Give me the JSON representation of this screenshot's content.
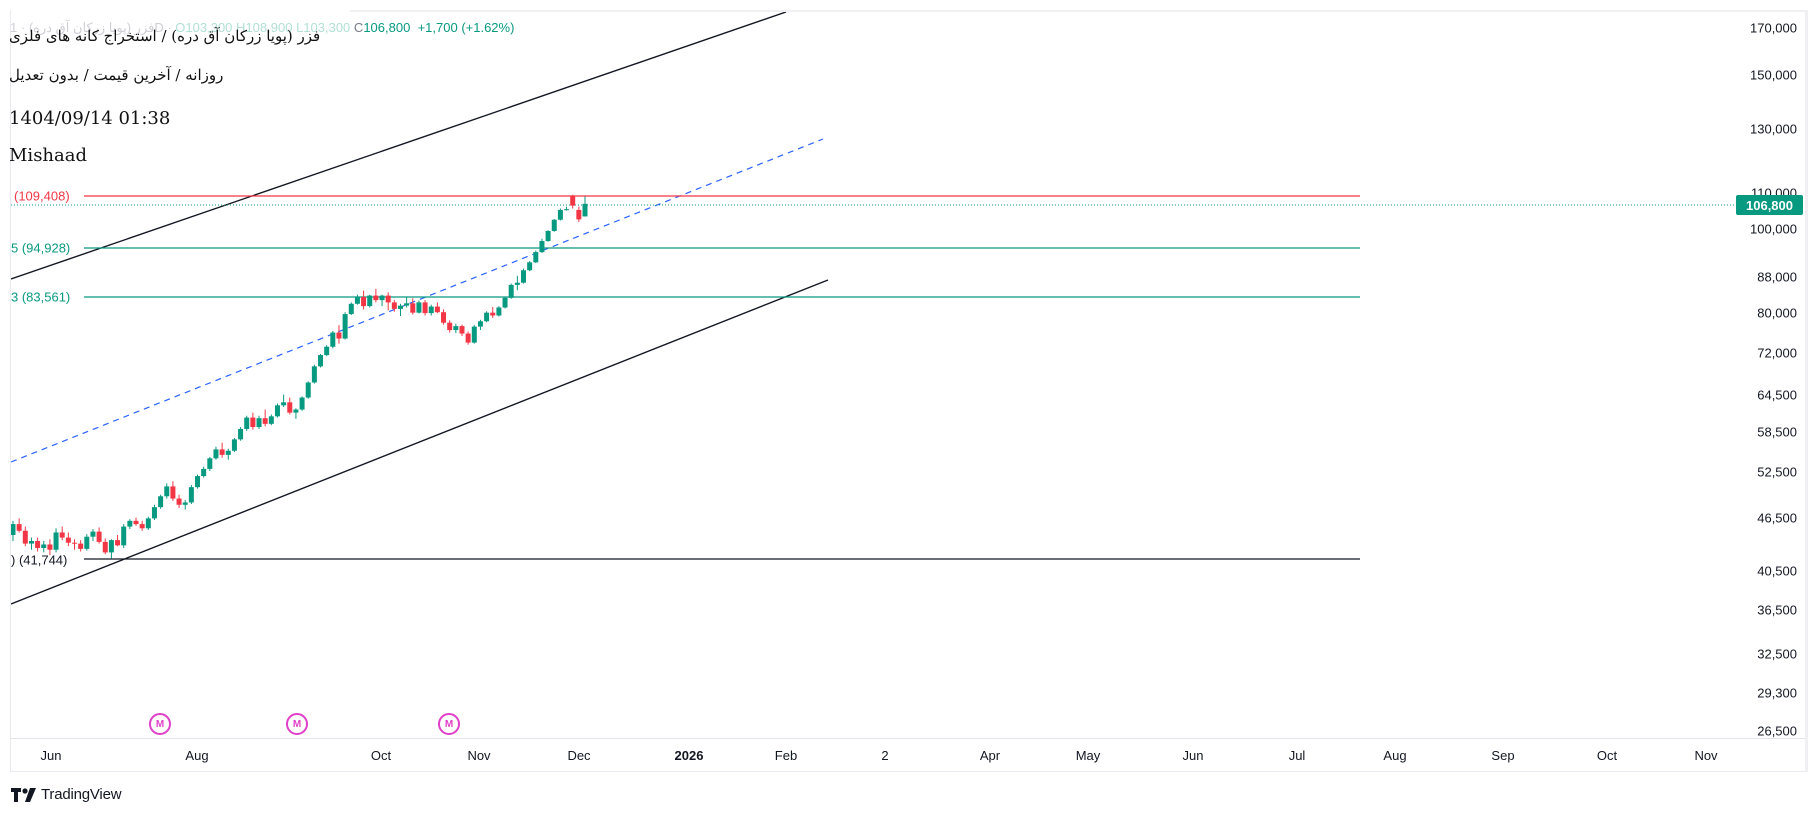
{
  "header": {
    "ohlc": {
      "symbol_faded": "فزر (پویا زرکان آق دره)",
      "interval": "1D",
      "open_label": "O",
      "open": "103,300",
      "high_label": "H",
      "high": "108,900",
      "low_label": "L",
      "low": "103,300",
      "close_label": "C",
      "close": "106,800",
      "change": "+1,700",
      "change_pct": "(+1.62%)"
    },
    "title": "فزر (پویا زرکان آق دره) / استخراج کانه های فلزی",
    "subtitle": "روزانه / آخرین قیمت / بدون تعدیل",
    "datetime": "1404/09/14 01:38",
    "author": "Mishaad"
  },
  "price_axis": {
    "ticks": [
      "170,000",
      "150,000",
      "130,000",
      "110,000",
      "100,000",
      "88,000",
      "80,000",
      "72,000",
      "64,500",
      "58,500",
      "52,500",
      "46,500",
      "40,500",
      "36,500",
      "32,500",
      "29,300",
      "26,500"
    ],
    "last_price": "106,800"
  },
  "time_axis": {
    "ticks": [
      "Jun",
      "Aug",
      "Oct",
      "Nov",
      "Dec",
      "2026",
      "Feb",
      "2",
      "Apr",
      "May",
      "Jun",
      "Jul",
      "Aug",
      "Sep",
      "Oct",
      "Nov"
    ],
    "bold_tick": "2026"
  },
  "levels": [
    {
      "label": "(109,408)",
      "value": 109408,
      "color": "#f23645"
    },
    {
      "label": "5 (94,928)",
      "value": 94928,
      "color": "#089981"
    },
    {
      "label": "3 (83,561)",
      "value": 83561,
      "color": "#089981"
    },
    {
      "label": ") (41,744)",
      "value": 41744,
      "color": "#131722"
    }
  ],
  "markers": [
    {
      "label": "M"
    },
    {
      "label": "M"
    },
    {
      "label": "M"
    }
  ],
  "footer": {
    "brand": "TradingView"
  },
  "colors": {
    "up": "#089981",
    "down": "#f23645",
    "channel": "#131722",
    "median_dashed": "#2962ff",
    "marker": "#e040c8"
  },
  "chart_data": {
    "type": "candlestick",
    "title": "فزر (پویا زرکان آق دره) / استخراج کانه های فلزی",
    "subtitle": "روزانه / آخرین قیمت / بدون تعدیل",
    "interval": "1D",
    "scale": "log",
    "ylim": [
      26500,
      170000
    ],
    "y_ticks": [
      170000,
      150000,
      130000,
      110000,
      100000,
      88000,
      80000,
      72000,
      64500,
      58500,
      52500,
      46500,
      40500,
      36500,
      32500,
      29300,
      26500
    ],
    "x_ticks": [
      "Jun",
      "Aug",
      "Oct",
      "Nov",
      "Dec",
      "2026",
      "Feb",
      "2",
      "Apr",
      "May",
      "Jun",
      "Jul",
      "Aug",
      "Sep",
      "Oct",
      "Nov"
    ],
    "last": {
      "open": 103300,
      "high": 108900,
      "low": 103300,
      "close": 106800,
      "change": 1700,
      "change_pct": 1.62
    },
    "horizontal_levels": [
      109408,
      94928,
      83561,
      41744
    ],
    "drawings": [
      "ascending parallel channel (black)",
      "dashed blue median line",
      "horizontal levels"
    ],
    "candles": [
      [
        44500,
        46200,
        43800,
        45800
      ],
      [
        45800,
        46500,
        44800,
        45000
      ],
      [
        45000,
        45500,
        43200,
        43500
      ],
      [
        43500,
        44200,
        42800,
        43800
      ],
      [
        43800,
        44200,
        42600,
        43000
      ],
      [
        43000,
        43800,
        42500,
        43400
      ],
      [
        43400,
        44000,
        42200,
        42800
      ],
      [
        42800,
        45300,
        42500,
        44800
      ],
      [
        44800,
        45500,
        43900,
        44200
      ],
      [
        44200,
        44800,
        43200,
        43600
      ],
      [
        43600,
        44000,
        42800,
        43500
      ],
      [
        43500,
        43900,
        42600,
        42900
      ],
      [
        42900,
        44600,
        42700,
        44300
      ],
      [
        44300,
        45200,
        43800,
        44900
      ],
      [
        44900,
        45400,
        43500,
        43700
      ],
      [
        43700,
        44100,
        42300,
        42500
      ],
      [
        42500,
        44000,
        41800,
        43900
      ],
      [
        43900,
        44500,
        43200,
        43300
      ],
      [
        43300,
        45800,
        43000,
        45500
      ],
      [
        45500,
        46400,
        45200,
        46200
      ],
      [
        46200,
        46600,
        45600,
        45800
      ],
      [
        45800,
        46200,
        45000,
        45300
      ],
      [
        45300,
        46700,
        45100,
        46500
      ],
      [
        46500,
        48200,
        46300,
        47900
      ],
      [
        47900,
        49500,
        47700,
        49300
      ],
      [
        49300,
        51000,
        49000,
        50600
      ],
      [
        50600,
        51300,
        48700,
        49000
      ],
      [
        49000,
        49500,
        47800,
        48200
      ],
      [
        48200,
        48800,
        47600,
        48500
      ],
      [
        48500,
        50800,
        48300,
        50500
      ],
      [
        50500,
        52200,
        50300,
        52000
      ],
      [
        52000,
        53300,
        51800,
        53000
      ],
      [
        53000,
        54700,
        52700,
        54500
      ],
      [
        54500,
        56200,
        54300,
        55800
      ],
      [
        55800,
        56800,
        54600,
        55000
      ],
      [
        55000,
        55900,
        54300,
        55600
      ],
      [
        55600,
        57500,
        55400,
        57300
      ],
      [
        57300,
        59200,
        57100,
        58900
      ],
      [
        58900,
        61000,
        58600,
        60700
      ],
      [
        60700,
        61500,
        58800,
        59200
      ],
      [
        59200,
        61000,
        58900,
        60600
      ],
      [
        60600,
        62000,
        59300,
        59700
      ],
      [
        59700,
        61200,
        59500,
        60900
      ],
      [
        60900,
        63000,
        60700,
        62700
      ],
      [
        62700,
        64500,
        62400,
        63200
      ],
      [
        63200,
        64000,
        61200,
        61500
      ],
      [
        61500,
        62200,
        60500,
        62000
      ],
      [
        62000,
        64200,
        61800,
        64000
      ],
      [
        64000,
        66800,
        63800,
        66600
      ],
      [
        66600,
        69800,
        66400,
        69500
      ],
      [
        69500,
        71800,
        69300,
        71600
      ],
      [
        71600,
        73500,
        71400,
        73200
      ],
      [
        73200,
        76300,
        72900,
        76000
      ],
      [
        76000,
        77500,
        73800,
        74800
      ],
      [
        74800,
        80200,
        74600,
        79800
      ],
      [
        79800,
        82300,
        79600,
        82000
      ],
      [
        82000,
        84000,
        81800,
        83500
      ],
      [
        83500,
        84900,
        80800,
        81500
      ],
      [
        81500,
        84000,
        81200,
        83800
      ],
      [
        83800,
        85300,
        82300,
        82800
      ],
      [
        82800,
        84000,
        81500,
        83800
      ],
      [
        83800,
        84500,
        80600,
        82300
      ],
      [
        82300,
        82800,
        80300,
        80900
      ],
      [
        80900,
        82000,
        79400,
        81600
      ],
      [
        81600,
        83500,
        81200,
        82100
      ],
      [
        82100,
        83200,
        79700,
        80100
      ],
      [
        80100,
        82700,
        79900,
        82300
      ],
      [
        82300,
        82800,
        79500,
        80000
      ],
      [
        80000,
        81800,
        79500,
        81400
      ],
      [
        81400,
        82300,
        80000,
        80200
      ],
      [
        80200,
        80800,
        77600,
        78000
      ],
      [
        78000,
        78500,
        76000,
        76500
      ],
      [
        76500,
        77800,
        75900,
        77300
      ],
      [
        77300,
        77600,
        75300,
        75800
      ],
      [
        75800,
        76200,
        73600,
        74000
      ],
      [
        74000,
        77500,
        73800,
        77200
      ],
      [
        77200,
        78600,
        76500,
        78300
      ],
      [
        78300,
        80400,
        78100,
        80100
      ],
      [
        80100,
        81300,
        79000,
        79500
      ],
      [
        79500,
        81500,
        79300,
        81200
      ],
      [
        81200,
        83500,
        81000,
        83300
      ],
      [
        83300,
        86500,
        83100,
        86200
      ],
      [
        86200,
        88300,
        85000,
        86700
      ],
      [
        86700,
        90000,
        86500,
        89600
      ],
      [
        89600,
        91800,
        89400,
        91500
      ],
      [
        91500,
        94400,
        91300,
        94000
      ],
      [
        94000,
        97400,
        93800,
        96800
      ],
      [
        96800,
        99600,
        96600,
        99400
      ],
      [
        99400,
        102600,
        99200,
        102400
      ],
      [
        102400,
        105500,
        102200,
        105100
      ],
      [
        105100,
        106000,
        104900,
        105300
      ],
      [
        109000,
        109400,
        105500,
        106300
      ],
      [
        105100,
        106000,
        101800,
        102500
      ],
      [
        103300,
        108900,
        103300,
        106800
      ]
    ]
  }
}
